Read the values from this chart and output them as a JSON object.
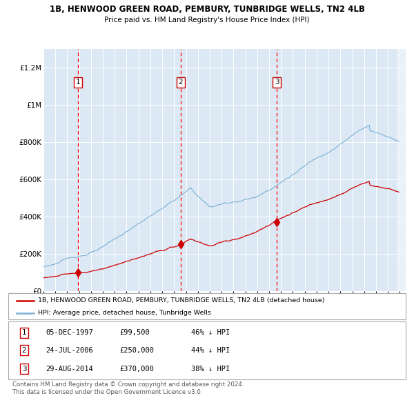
{
  "title1": "1B, HENWOOD GREEN ROAD, PEMBURY, TUNBRIDGE WELLS, TN2 4LB",
  "title2": "Price paid vs. HM Land Registry's House Price Index (HPI)",
  "plot_bg_color": "#dce9f5",
  "grid_color": "#ffffff",
  "red_line_color": "#cc0000",
  "blue_line_color": "#7ab0d4",
  "sale_prices": [
    99500,
    250000,
    370000
  ],
  "sale_years": [
    1997.92,
    2006.54,
    2014.66
  ],
  "legend_red": "1B, HENWOOD GREEN ROAD, PEMBURY, TUNBRIDGE WELLS, TN2 4LB (detached house)",
  "legend_blue": "HPI: Average price, detached house, Tunbridge Wells",
  "table_rows": [
    [
      "1",
      "05-DEC-1997",
      "£99,500",
      "46% ↓ HPI"
    ],
    [
      "2",
      "24-JUL-2006",
      "£250,000",
      "44% ↓ HPI"
    ],
    [
      "3",
      "29-AUG-2014",
      "£370,000",
      "38% ↓ HPI"
    ]
  ],
  "footer": "Contains HM Land Registry data © Crown copyright and database right 2024.\nThis data is licensed under the Open Government Licence v3.0.",
  "ylim": [
    0,
    1300000
  ],
  "yticks": [
    0,
    200000,
    400000,
    600000,
    800000,
    1000000,
    1200000
  ],
  "ytick_labels": [
    "£0",
    "£200K",
    "£400K",
    "£600K",
    "£800K",
    "£1M",
    "£1.2M"
  ],
  "xstart_year": 1995,
  "xend_year": 2025
}
